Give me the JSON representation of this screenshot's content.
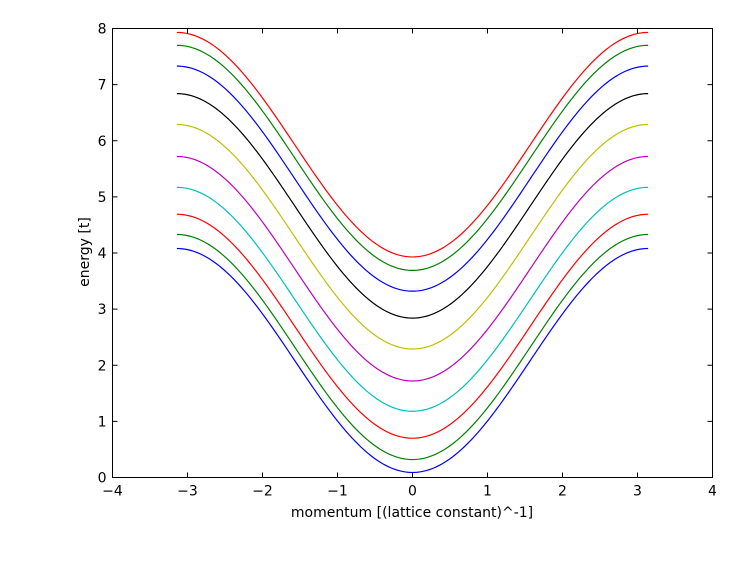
{
  "chart_data": {
    "type": "line",
    "title": "",
    "xlabel": "momentum [(lattice constant)^-1]",
    "ylabel": "energy [t]",
    "xlim": [
      -4,
      4
    ],
    "ylim": [
      0,
      8
    ],
    "xticks": [
      "−4",
      "−3",
      "−2",
      "−1",
      "0",
      "1",
      "2",
      "3",
      "4"
    ],
    "yticks": [
      "0",
      "1",
      "2",
      "3",
      "4",
      "5",
      "6",
      "7",
      "8"
    ],
    "grid": false,
    "legend": null,
    "x_range": [
      -3.1416,
      3.1416
    ],
    "series": [
      {
        "name": "band 1",
        "color": "#0000ff",
        "min_at_k0": 0.09,
        "max_at_kpi": 4.08
      },
      {
        "name": "band 2",
        "color": "#008000",
        "min_at_k0": 0.32,
        "max_at_kpi": 4.33
      },
      {
        "name": "band 3",
        "color": "#ff0000",
        "min_at_k0": 0.7,
        "max_at_kpi": 4.69
      },
      {
        "name": "band 4",
        "color": "#00bfbf",
        "min_at_k0": 1.18,
        "max_at_kpi": 5.17
      },
      {
        "name": "band 5",
        "color": "#bf00bf",
        "min_at_k0": 1.72,
        "max_at_kpi": 5.72
      },
      {
        "name": "band 6",
        "color": "#bfbf00",
        "min_at_k0": 2.29,
        "max_at_kpi": 6.29
      },
      {
        "name": "band 7",
        "color": "#000000",
        "min_at_k0": 2.84,
        "max_at_kpi": 6.84
      },
      {
        "name": "band 8",
        "color": "#0000ff",
        "min_at_k0": 3.32,
        "max_at_kpi": 7.33
      },
      {
        "name": "band 9",
        "color": "#008000",
        "min_at_k0": 3.69,
        "max_at_kpi": 7.7
      },
      {
        "name": "band 10",
        "color": "#ff0000",
        "min_at_k0": 3.93,
        "max_at_kpi": 7.93
      }
    ]
  }
}
